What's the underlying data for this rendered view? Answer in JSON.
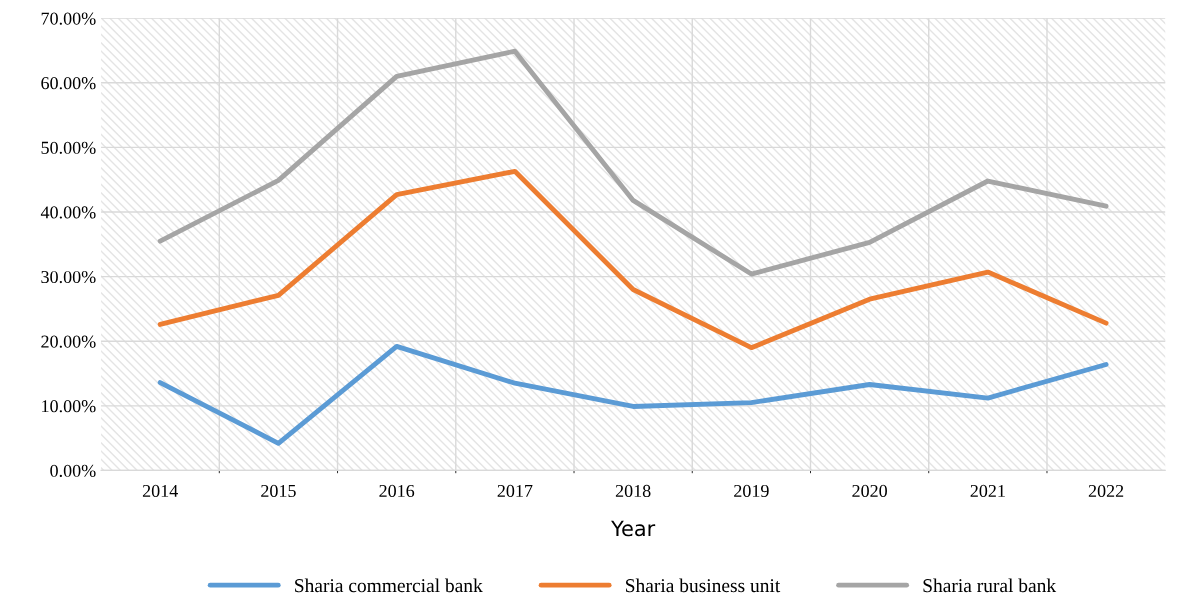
{
  "chart_data": {
    "type": "line",
    "xlabel": "Year",
    "categories": [
      "2014",
      "2015",
      "2016",
      "2017",
      "2018",
      "2019",
      "2020",
      "2021",
      "2022"
    ],
    "series": [
      {
        "name": "Sharia commercial bank",
        "color": "#5b9bd5",
        "values": [
          13.6,
          4.2,
          19.2,
          13.5,
          9.9,
          10.5,
          13.3,
          11.2,
          16.4
        ]
      },
      {
        "name": "Sharia business unit",
        "color": "#ed7d31",
        "values": [
          22.6,
          27.1,
          42.7,
          46.3,
          28.0,
          19.0,
          26.5,
          30.7,
          22.8
        ]
      },
      {
        "name": "Sharia rural bank",
        "color": "#a5a5a5",
        "values": [
          35.5,
          44.9,
          61.0,
          64.9,
          41.8,
          30.4,
          35.3,
          44.8,
          40.9
        ]
      }
    ],
    "ylim": [
      0,
      70
    ],
    "yticks": [
      {
        "value": 0,
        "label": "0.00%"
      },
      {
        "value": 10,
        "label": "10.00%"
      },
      {
        "value": 20,
        "label": "20.00%"
      },
      {
        "value": 30,
        "label": "30.00%"
      },
      {
        "value": 40,
        "label": "40.00%"
      },
      {
        "value": 50,
        "label": "50.00%"
      },
      {
        "value": 60,
        "label": "60.00%"
      },
      {
        "value": 70,
        "label": "70.00%"
      }
    ],
    "grid": true,
    "legend": "bottom",
    "marker": "none",
    "line_style": "solid"
  }
}
